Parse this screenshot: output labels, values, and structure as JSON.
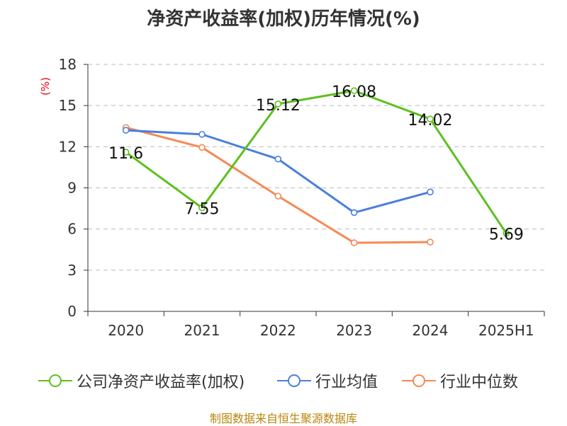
{
  "title": "净资产收益率(加权)历年情况(%)",
  "unit_label": "(%)",
  "footer": "制图数据来自恒生聚源数据库",
  "chart_data": {
    "type": "line",
    "title": "净资产收益率(加权)历年情况(%)",
    "ylabel": "(%)",
    "categories": [
      "2020",
      "2021",
      "2022",
      "2023",
      "2024",
      "2025H1"
    ],
    "yticks": [
      "0",
      "3",
      "6",
      "9",
      "12",
      "15",
      "18"
    ],
    "ylim": [
      0,
      18
    ],
    "grid": true,
    "legend_position": "bottom",
    "series": [
      {
        "name": "公司净资产收益率(加权)",
        "color": "#5dc01e",
        "values": [
          11.6,
          7.55,
          15.12,
          16.08,
          14.02,
          5.69
        ],
        "labels": [
          "11.6",
          "7.55",
          "15.12",
          "16.08",
          "14.02",
          "5.69"
        ]
      },
      {
        "name": "行业均值",
        "color": "#4a7fdc",
        "values": [
          13.2,
          12.9,
          11.1,
          7.2,
          8.7,
          null
        ]
      },
      {
        "name": "行业中位数",
        "color": "#f58a56",
        "values": [
          13.4,
          11.95,
          8.4,
          5.0,
          5.05,
          null
        ]
      }
    ]
  }
}
